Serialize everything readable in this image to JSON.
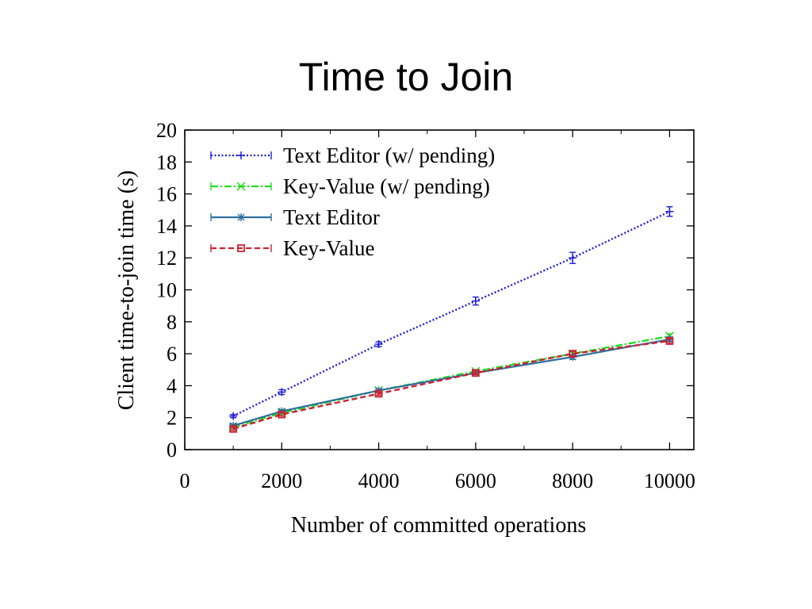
{
  "slide": {
    "title": "Time to Join"
  },
  "chart_data": {
    "type": "line",
    "xlabel": "Number of committed operations",
    "ylabel": "Client time-to-join time (s)",
    "xlim": [
      0,
      10500
    ],
    "ylim": [
      0,
      20
    ],
    "x_ticks": [
      0,
      2000,
      4000,
      6000,
      8000,
      10000
    ],
    "y_ticks": [
      0,
      2,
      4,
      6,
      8,
      10,
      12,
      14,
      16,
      18,
      20
    ],
    "grid": false,
    "legend_position": "top-left",
    "x": [
      1000,
      2000,
      4000,
      6000,
      8000,
      10000
    ],
    "series": [
      {
        "name": "Text Editor (w/ pending)",
        "values": [
          2.1,
          3.6,
          6.6,
          9.3,
          12.0,
          14.9
        ],
        "errors": [
          0.1,
          0.15,
          0.15,
          0.25,
          0.35,
          0.3
        ],
        "color": "#1f1fd6",
        "dash": "dotted",
        "marker": "plus"
      },
      {
        "name": "Key-Value (w/ pending)",
        "values": [
          1.4,
          2.3,
          3.7,
          4.9,
          6.0,
          7.1
        ],
        "errors": [
          0.1,
          0.1,
          0.1,
          0.1,
          0.15,
          0.15
        ],
        "color": "#22dd22",
        "dash": "dashdot",
        "marker": "x"
      },
      {
        "name": "Text Editor",
        "values": [
          1.5,
          2.4,
          3.7,
          4.8,
          5.8,
          6.9
        ],
        "errors": [
          0.1,
          0.1,
          0.1,
          0.1,
          0.15,
          0.15
        ],
        "color": "#2f6f9f",
        "dash": "solid",
        "marker": "star"
      },
      {
        "name": "Key-Value",
        "values": [
          1.3,
          2.2,
          3.5,
          4.8,
          6.0,
          6.8
        ],
        "errors": [
          0.1,
          0.1,
          0.1,
          0.1,
          0.15,
          0.15
        ],
        "color": "#cc2233",
        "dash": "dashed",
        "marker": "square"
      }
    ]
  }
}
